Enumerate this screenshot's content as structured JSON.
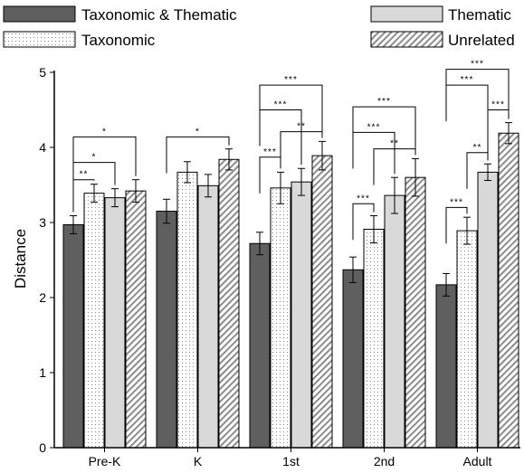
{
  "chart_data": {
    "type": "bar",
    "title": "",
    "xlabel": "",
    "ylabel": "Distance",
    "ylim": [
      0,
      5
    ],
    "yticks": [
      0,
      1,
      2,
      3,
      4,
      5
    ],
    "grid": false,
    "legend_position": "top",
    "categories": [
      "Pre-K",
      "K",
      "1st",
      "2nd",
      "Adult"
    ],
    "series": [
      {
        "name": "Taxonomic & Thematic",
        "pattern": "solid-dark",
        "color": "#5f5f5f",
        "values": [
          2.97,
          3.15,
          2.72,
          2.37,
          2.17
        ],
        "errors": [
          0.12,
          0.16,
          0.15,
          0.17,
          0.15
        ]
      },
      {
        "name": "Taxonomic",
        "pattern": "dotted",
        "color": "#ffffff",
        "values": [
          3.39,
          3.67,
          3.46,
          2.91,
          2.89
        ],
        "errors": [
          0.12,
          0.14,
          0.21,
          0.18,
          0.18
        ]
      },
      {
        "name": "Thematic",
        "pattern": "solid-light",
        "color": "#d9d9d9",
        "values": [
          3.33,
          3.49,
          3.54,
          3.36,
          3.67
        ],
        "errors": [
          0.12,
          0.15,
          0.18,
          0.24,
          0.11
        ]
      },
      {
        "name": "Unrelated",
        "pattern": "diagonal-hatch",
        "color": "#ffffff",
        "values": [
          3.42,
          3.84,
          3.89,
          3.6,
          4.19
        ],
        "errors": [
          0.15,
          0.14,
          0.19,
          0.25,
          0.14
        ]
      }
    ],
    "significance": [
      {
        "category": 0,
        "from": 0,
        "to": 1,
        "label": "**",
        "y": 3.57
      },
      {
        "category": 0,
        "from": 0,
        "to": 2,
        "label": "*",
        "y": 3.8
      },
      {
        "category": 0,
        "from": 0,
        "to": 3,
        "label": "*",
        "y": 4.14
      },
      {
        "category": 1,
        "from": 0,
        "to": 3,
        "label": "*",
        "y": 4.14
      },
      {
        "category": 2,
        "from": 0,
        "to": 1,
        "label": "***",
        "y": 3.87
      },
      {
        "category": 2,
        "from": 1,
        "to": 3,
        "label": "**",
        "y": 4.21
      },
      {
        "category": 2,
        "from": 0,
        "to": 2,
        "label": "***",
        "y": 4.5
      },
      {
        "category": 2,
        "from": 0,
        "to": 3,
        "label": "***",
        "y": 4.83
      },
      {
        "category": 3,
        "from": 0,
        "to": 1,
        "label": "***",
        "y": 3.25
      },
      {
        "category": 3,
        "from": 1,
        "to": 3,
        "label": "**",
        "y": 3.98
      },
      {
        "category": 3,
        "from": 0,
        "to": 2,
        "label": "***",
        "y": 4.2
      },
      {
        "category": 3,
        "from": 0,
        "to": 3,
        "label": "***",
        "y": 4.54
      },
      {
        "category": 4,
        "from": 0,
        "to": 1,
        "label": "***",
        "y": 3.2
      },
      {
        "category": 4,
        "from": 1,
        "to": 2,
        "label": "**",
        "y": 3.93
      },
      {
        "category": 4,
        "from": 2,
        "to": 3,
        "label": "***",
        "y": 4.5
      },
      {
        "category": 4,
        "from": 0,
        "to": 2,
        "label": "***",
        "y": 4.83
      },
      {
        "category": 4,
        "from": 0,
        "to": 3,
        "label": "***",
        "y": 5.04
      }
    ]
  }
}
